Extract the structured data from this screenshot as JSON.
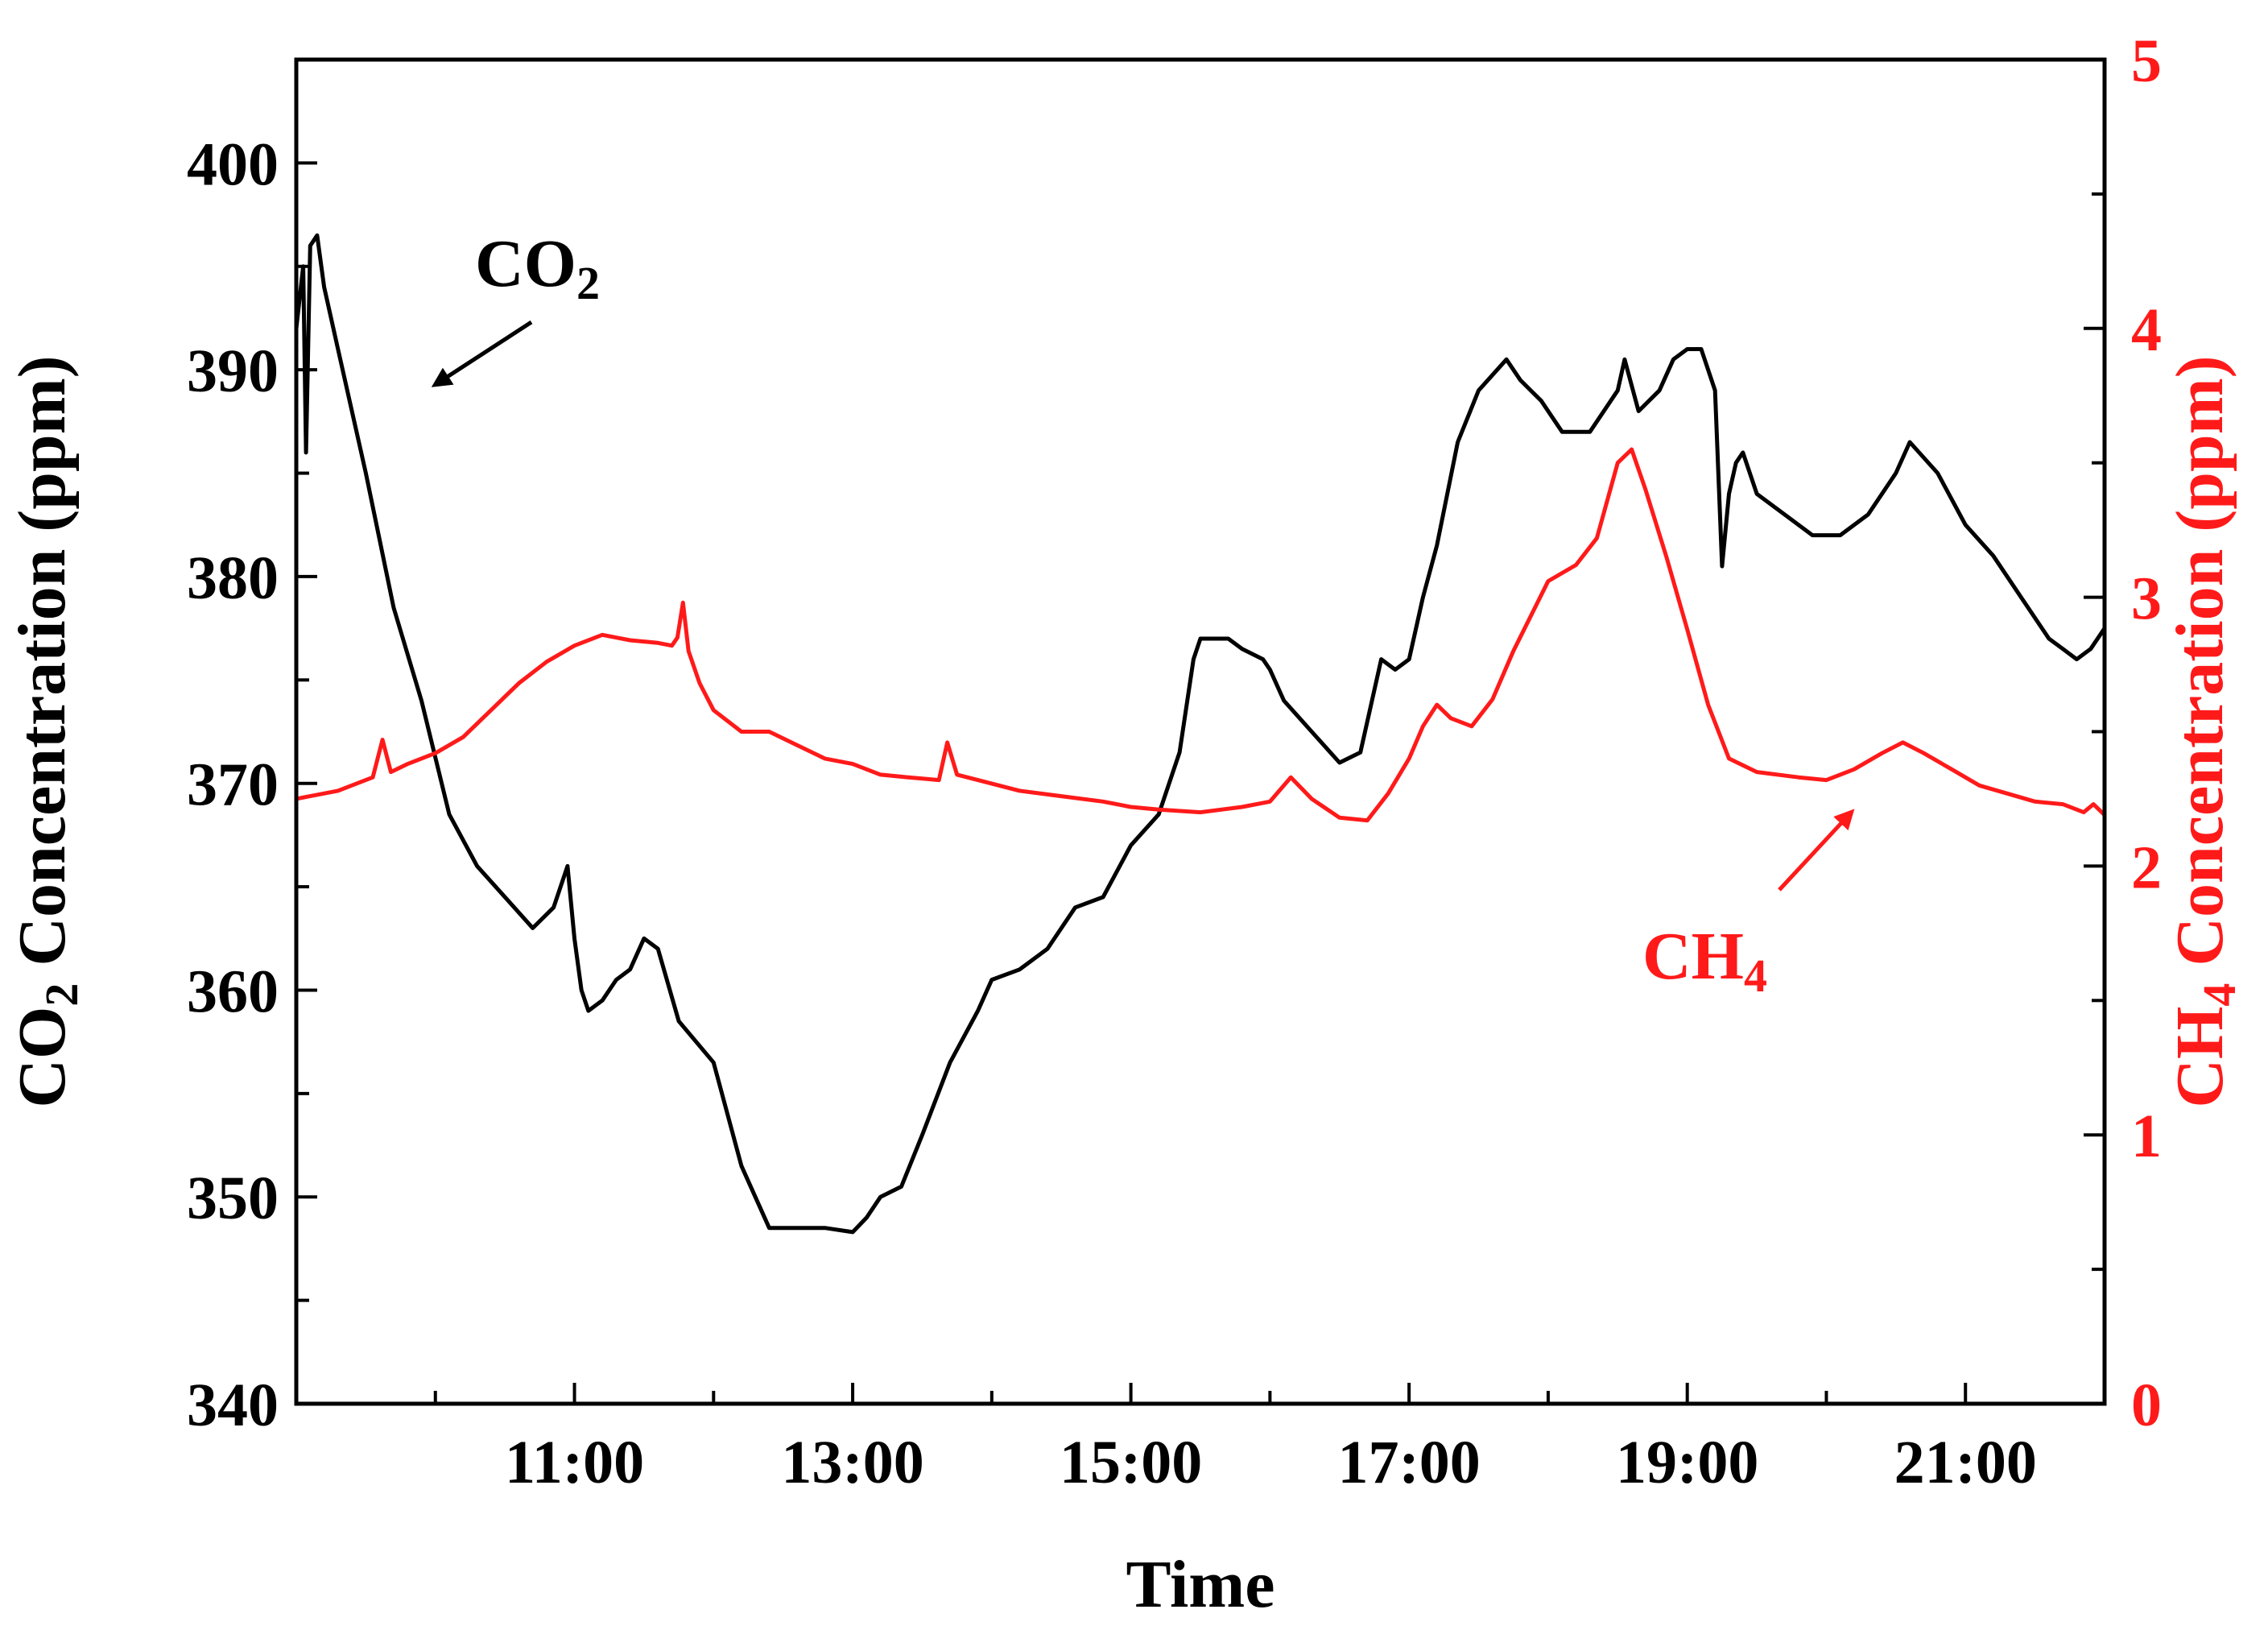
{
  "chart_data": {
    "type": "line",
    "xlabel": "Time",
    "ylabel_left": {
      "prefix": "CO",
      "sub": "2",
      "suffix": " Concentration (ppm)"
    },
    "ylabel_right": {
      "prefix": "CH",
      "sub": "4",
      "suffix": " Concentration (ppm)"
    },
    "x_range_hours": [
      9.0,
      22.0
    ],
    "x_ticks": [
      {
        "value": 11,
        "label": "11:00"
      },
      {
        "value": 13,
        "label": "13:00"
      },
      {
        "value": 15,
        "label": "15:00"
      },
      {
        "value": 17,
        "label": "17:00"
      },
      {
        "value": 19,
        "label": "19:00"
      },
      {
        "value": 21,
        "label": "21:00"
      }
    ],
    "y_left_range": [
      340,
      405
    ],
    "y_left_ticks": [
      340,
      350,
      360,
      370,
      380,
      390,
      400
    ],
    "y_right_range": [
      0,
      5
    ],
    "y_right_ticks": [
      0,
      1,
      2,
      3,
      4,
      5
    ],
    "colors": {
      "co2": "#000000",
      "ch4": "#ff1a1a",
      "axis": "#000000"
    },
    "annotations": [
      {
        "series": "co2",
        "prefix": "CO",
        "sub": "2"
      },
      {
        "series": "ch4",
        "prefix": "CH",
        "sub": "4"
      }
    ],
    "series": [
      {
        "name": "CO2",
        "axis": "left",
        "color": "#000000",
        "x": [
          9.0,
          9.05,
          9.07,
          9.1,
          9.15,
          9.2,
          9.3,
          9.5,
          9.7,
          9.9,
          10.1,
          10.3,
          10.5,
          10.7,
          10.85,
          10.95,
          11.0,
          11.05,
          11.1,
          11.2,
          11.3,
          11.4,
          11.5,
          11.6,
          11.75,
          12.0,
          12.2,
          12.4,
          12.6,
          12.8,
          13.0,
          13.1,
          13.2,
          13.35,
          13.5,
          13.7,
          13.9,
          14.0,
          14.2,
          14.4,
          14.6,
          14.8,
          15.0,
          15.2,
          15.35,
          15.45,
          15.5,
          15.6,
          15.7,
          15.8,
          15.95,
          16.0,
          16.1,
          16.3,
          16.5,
          16.65,
          16.8,
          16.9,
          17.0,
          17.1,
          17.2,
          17.35,
          17.5,
          17.7,
          17.8,
          17.95,
          18.1,
          18.3,
          18.5,
          18.55,
          18.65,
          18.8,
          18.9,
          19.0,
          19.1,
          19.2,
          19.25,
          19.3,
          19.35,
          19.4,
          19.5,
          19.7,
          19.9,
          20.1,
          20.3,
          20.5,
          20.6,
          20.8,
          21.0,
          21.2,
          21.4,
          21.6,
          21.7,
          21.8,
          21.9,
          22.0
        ],
        "values": [
          392.0,
          395.0,
          386.0,
          396.0,
          396.5,
          394.0,
          391.0,
          385.0,
          378.5,
          374.0,
          368.5,
          366.0,
          364.5,
          363.0,
          364.0,
          366.0,
          362.5,
          360.0,
          359.0,
          359.5,
          360.5,
          361.0,
          362.5,
          362.0,
          358.5,
          356.5,
          351.5,
          348.5,
          348.5,
          348.5,
          348.3,
          349.0,
          350.0,
          350.5,
          353.0,
          356.5,
          359.0,
          360.5,
          361.0,
          362.0,
          364.0,
          364.5,
          367.0,
          368.5,
          371.5,
          376.0,
          377.0,
          377.0,
          377.0,
          376.5,
          376.0,
          375.5,
          374.0,
          372.5,
          371.0,
          371.5,
          376.0,
          375.5,
          376.0,
          379.0,
          381.5,
          386.5,
          389.0,
          390.5,
          389.5,
          388.5,
          387.0,
          387.0,
          389.0,
          390.5,
          388.0,
          389.0,
          390.5,
          391.0,
          391.0,
          389.0,
          380.5,
          384.0,
          385.5,
          386.0,
          384.0,
          383.0,
          382.0,
          382.0,
          383.0,
          385.0,
          386.5,
          385.0,
          382.5,
          381.0,
          379.0,
          377.0,
          376.5,
          376.0,
          376.5,
          377.5
        ]
      },
      {
        "name": "CH4",
        "axis": "right",
        "color": "#ff1a1a",
        "x": [
          9.0,
          9.3,
          9.55,
          9.62,
          9.68,
          9.8,
          10.0,
          10.2,
          10.4,
          10.6,
          10.8,
          11.0,
          11.2,
          11.4,
          11.6,
          11.7,
          11.74,
          11.78,
          11.82,
          11.9,
          12.0,
          12.2,
          12.4,
          12.6,
          12.8,
          13.0,
          13.2,
          13.4,
          13.62,
          13.68,
          13.75,
          13.9,
          14.2,
          14.5,
          14.8,
          15.0,
          15.2,
          15.5,
          15.8,
          16.0,
          16.15,
          16.3,
          16.5,
          16.7,
          16.85,
          17.0,
          17.1,
          17.2,
          17.3,
          17.45,
          17.6,
          17.75,
          18.0,
          18.2,
          18.35,
          18.5,
          18.6,
          18.7,
          18.85,
          19.0,
          19.15,
          19.3,
          19.5,
          19.8,
          20.0,
          20.2,
          20.4,
          20.55,
          20.7,
          20.9,
          21.1,
          21.3,
          21.5,
          21.7,
          21.85,
          21.92,
          22.0
        ],
        "values": [
          2.25,
          2.28,
          2.33,
          2.47,
          2.35,
          2.38,
          2.42,
          2.48,
          2.58,
          2.68,
          2.76,
          2.82,
          2.86,
          2.84,
          2.83,
          2.82,
          2.85,
          2.98,
          2.8,
          2.68,
          2.58,
          2.5,
          2.5,
          2.45,
          2.4,
          2.38,
          2.34,
          2.33,
          2.32,
          2.46,
          2.34,
          2.32,
          2.28,
          2.26,
          2.24,
          2.22,
          2.21,
          2.2,
          2.22,
          2.24,
          2.33,
          2.25,
          2.18,
          2.17,
          2.27,
          2.4,
          2.52,
          2.6,
          2.55,
          2.52,
          2.62,
          2.8,
          3.06,
          3.12,
          3.22,
          3.5,
          3.55,
          3.4,
          3.15,
          2.88,
          2.6,
          2.4,
          2.35,
          2.33,
          2.32,
          2.36,
          2.42,
          2.46,
          2.42,
          2.36,
          2.3,
          2.27,
          2.24,
          2.23,
          2.2,
          2.23,
          2.19
        ]
      }
    ]
  }
}
